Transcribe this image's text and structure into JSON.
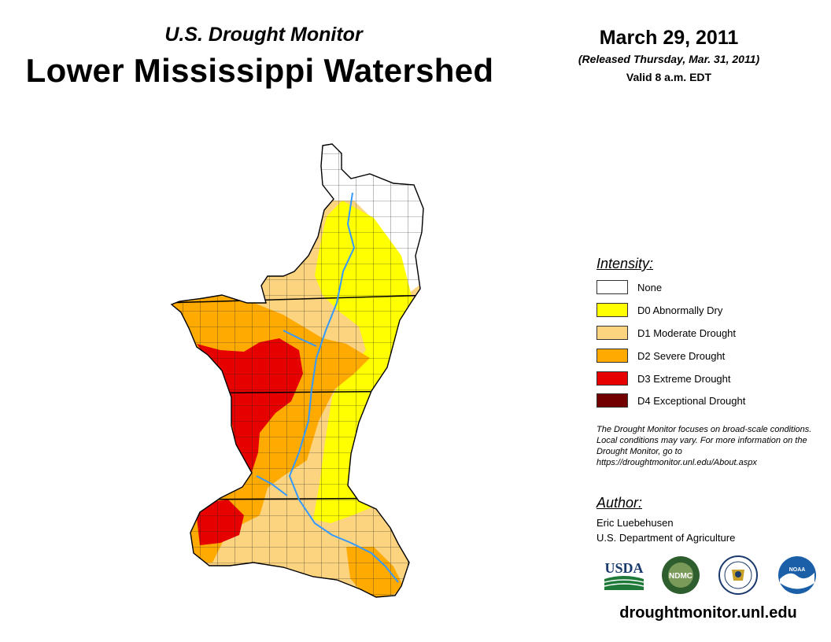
{
  "header": {
    "subtitle": "U.S. Drought Monitor",
    "title": "Lower Mississippi Watershed",
    "date": "March 29, 2011",
    "released": "(Released Thursday, Mar. 31, 2011)",
    "valid": "Valid 8 a.m. EDT"
  },
  "legend": {
    "heading": "Intensity:",
    "items": [
      {
        "label": "None",
        "color": "#ffffff"
      },
      {
        "label": "D0 Abnormally Dry",
        "color": "#ffff00"
      },
      {
        "label": "D1 Moderate Drought",
        "color": "#fcd37f"
      },
      {
        "label": "D2 Severe Drought",
        "color": "#ffaa00"
      },
      {
        "label": "D3 Extreme Drought",
        "color": "#e60000"
      },
      {
        "label": "D4 Exceptional Drought",
        "color": "#730000"
      }
    ]
  },
  "note": "The Drought Monitor focuses on broad-scale conditions. Local conditions may vary. For more information on the Drought Monitor, go to https://droughtmonitor.unl.edu/About.aspx",
  "author": {
    "heading": "Author:",
    "name": "Eric Luebehusen",
    "org": "U.S. Department of Agriculture"
  },
  "logos": [
    {
      "label": "USDA",
      "icon": "usda-logo-icon"
    },
    {
      "label": "NDMC",
      "icon": "ndmc-logo-icon"
    },
    {
      "label": "",
      "icon": "commerce-seal-icon"
    },
    {
      "label": "NOAA",
      "icon": "noaa-logo-icon"
    }
  ],
  "footer": {
    "url": "droughtmonitor.unl.edu"
  },
  "map": {
    "river_color": "#3399ff"
  }
}
